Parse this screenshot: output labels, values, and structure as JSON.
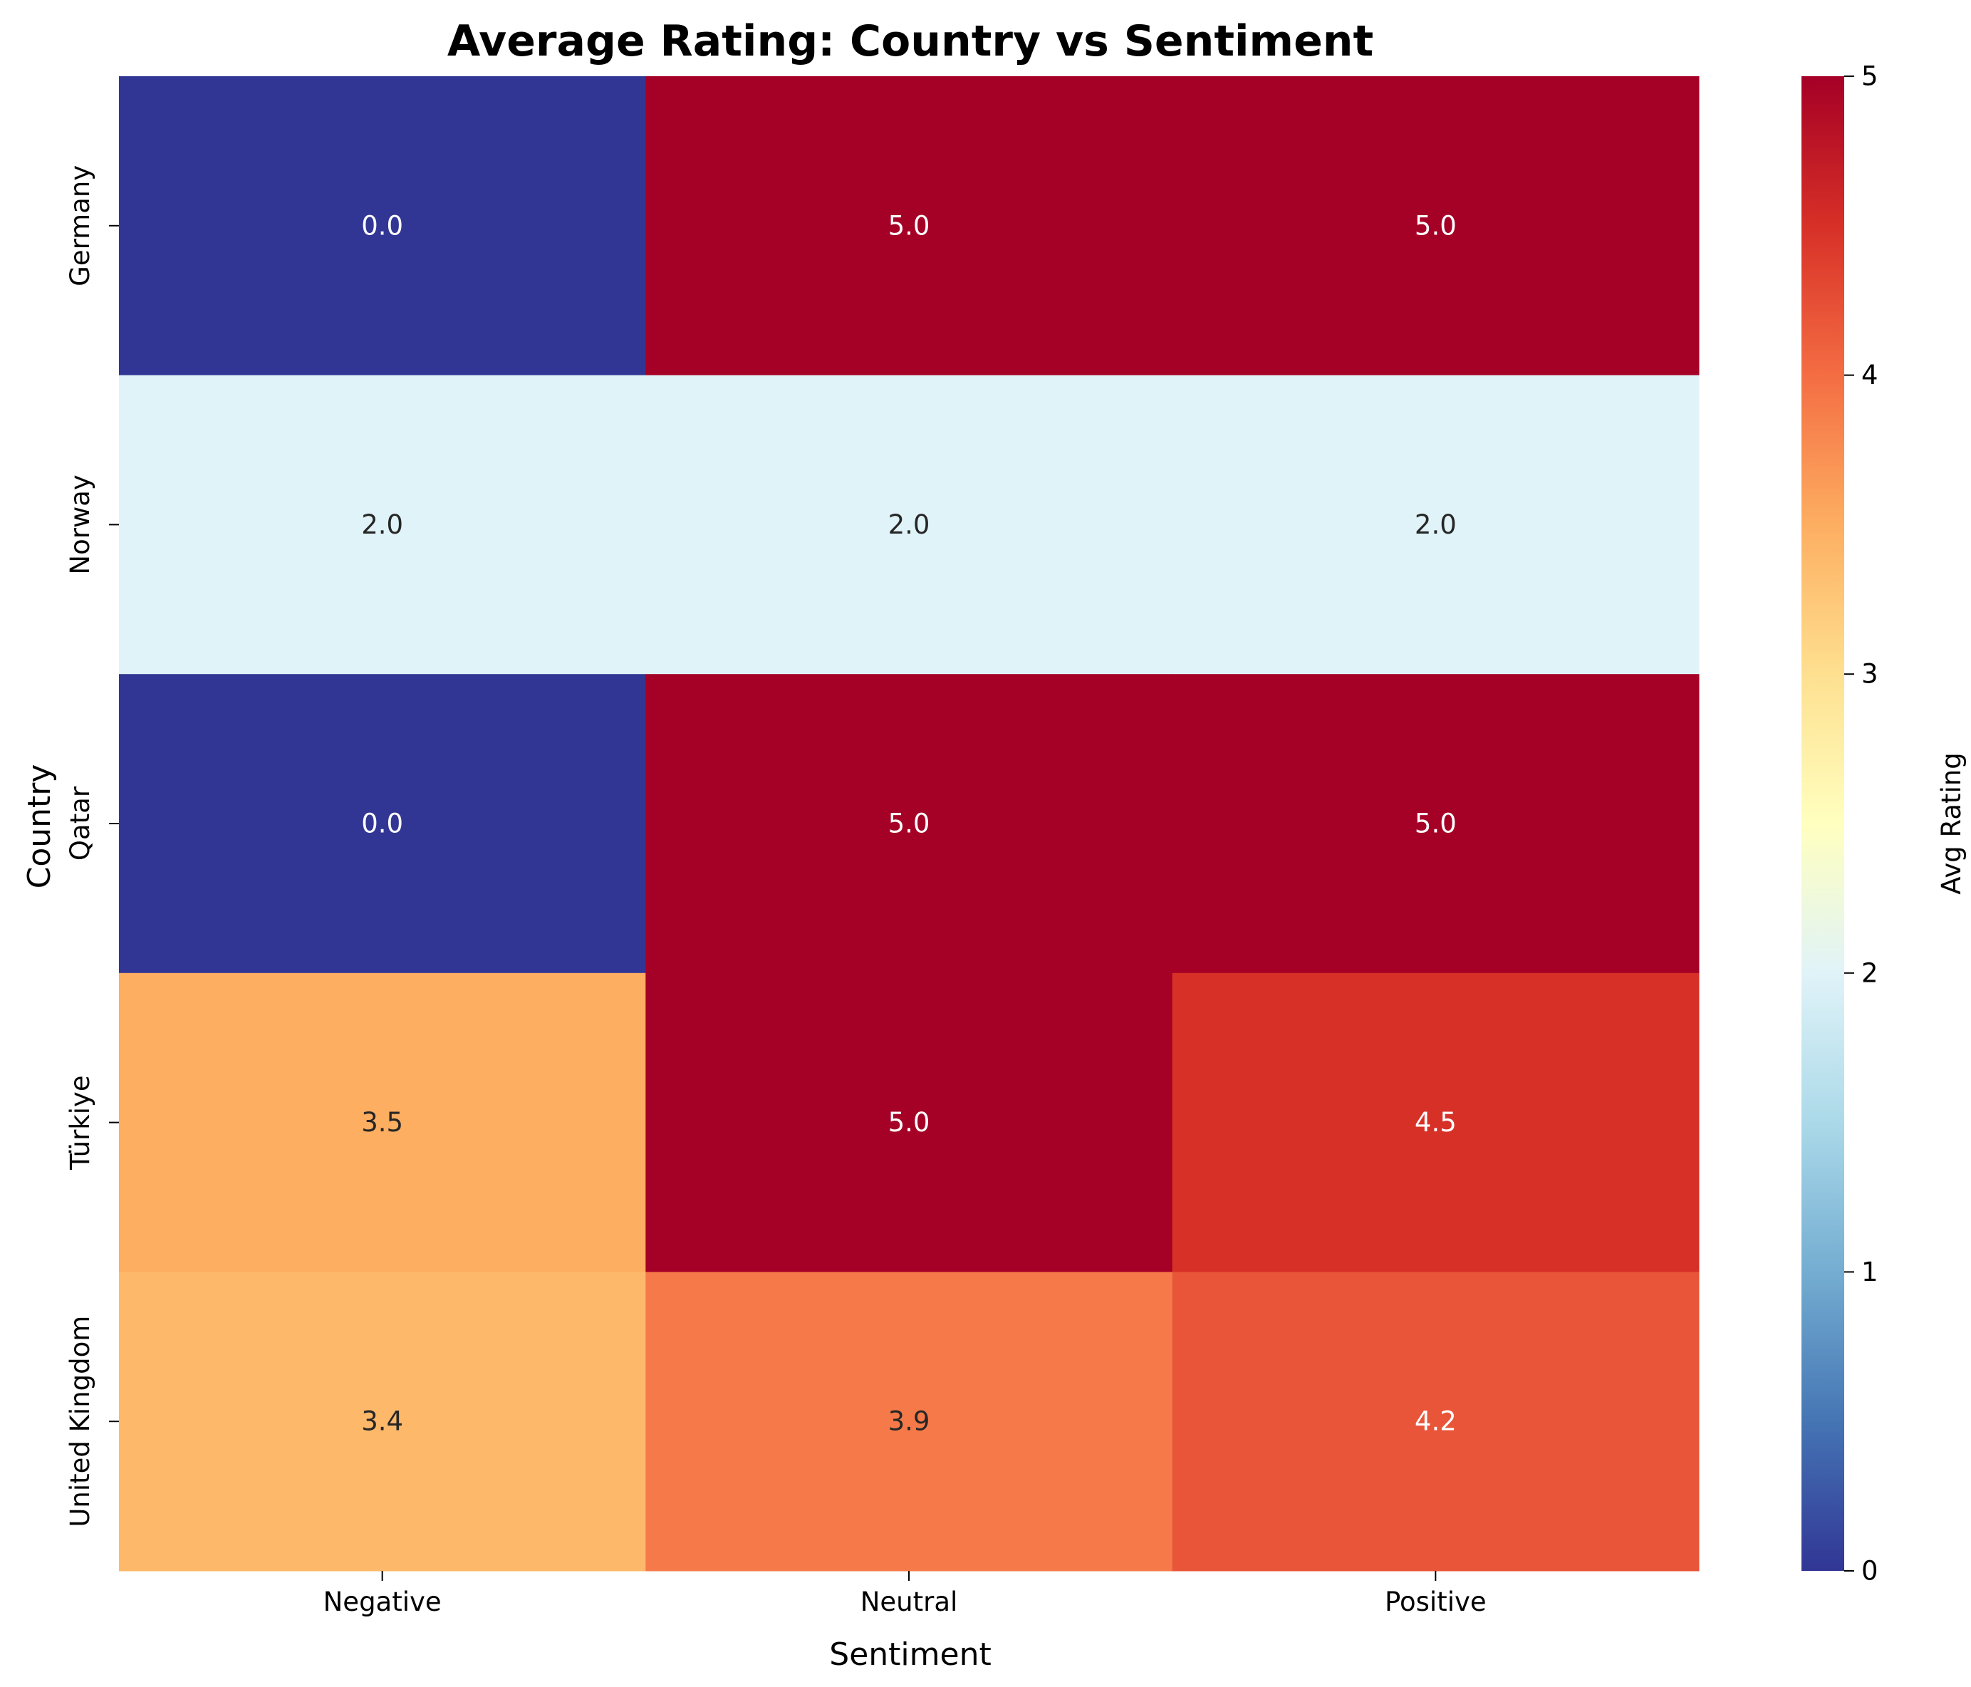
{
  "chart_data": {
    "type": "heatmap",
    "title": "Average Rating: Country vs Sentiment",
    "xlabel": "Sentiment",
    "ylabel": "Country",
    "x_categories": [
      "Negative",
      "Neutral",
      "Positive"
    ],
    "y_categories": [
      "Germany",
      "Norway",
      "Qatar",
      "Türkiye",
      "United Kingdom"
    ],
    "values": [
      [
        0.0,
        5.0,
        5.0
      ],
      [
        2.0,
        2.0,
        2.0
      ],
      [
        0.0,
        5.0,
        5.0
      ],
      [
        3.5,
        5.0,
        4.5
      ],
      [
        3.4,
        3.9,
        4.2
      ]
    ],
    "value_labels": [
      [
        "0.0",
        "5.0",
        "5.0"
      ],
      [
        "2.0",
        "2.0",
        "2.0"
      ],
      [
        "0.0",
        "5.0",
        "5.0"
      ],
      [
        "3.5",
        "5.0",
        "4.5"
      ],
      [
        "3.4",
        "3.9",
        "4.2"
      ]
    ],
    "colorbar": {
      "label": "Avg Rating",
      "range": [
        0,
        5
      ],
      "ticks": [
        "0",
        "1",
        "2",
        "3",
        "4",
        "5"
      ],
      "colormap": "RdYlBu_r",
      "colors": [
        "#313695",
        "#4575b4",
        "#74add1",
        "#abd9e9",
        "#e0f3f8",
        "#ffffbf",
        "#fee090",
        "#fdae61",
        "#f46d43",
        "#d73027",
        "#a50026"
      ]
    },
    "grid": false
  }
}
